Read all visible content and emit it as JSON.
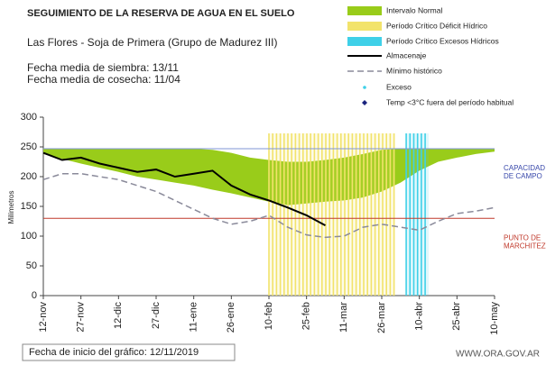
{
  "chart_data": {
    "type": "line",
    "title": "SEGUIMIENTO DE LA RESERVA DE AGUA EN EL SUELO",
    "subtitle": "Las Flores - Soja de Primera (Grupo de Madurez III)",
    "notes": [
      "Fecha media de siembra: 13/11",
      "Fecha media de cosecha: 11/04"
    ],
    "y_label": "Milímetros",
    "categories": [
      "12-nov",
      null,
      "27-nov",
      null,
      "12-dic",
      null,
      "27-dic",
      null,
      "11-ene",
      null,
      "26-ene",
      null,
      "10-feb",
      null,
      "25-feb",
      null,
      "11-mar",
      null,
      "26-mar",
      null,
      "10-abr",
      null,
      "25-abr",
      null,
      "10-may"
    ],
    "ylim": [
      0,
      300
    ],
    "yticks": [
      0,
      50,
      100,
      150,
      200,
      250,
      300
    ],
    "band": {
      "name": "Intervalo Normal",
      "color": "#99cc1a",
      "upper": [
        247,
        247,
        247,
        247,
        247,
        247,
        247,
        247,
        247,
        245,
        240,
        232,
        228,
        225,
        225,
        228,
        232,
        238,
        245,
        247,
        247,
        247,
        247,
        247,
        247
      ],
      "lower": [
        238,
        230,
        222,
        215,
        208,
        200,
        195,
        190,
        185,
        178,
        172,
        165,
        158,
        152,
        155,
        158,
        160,
        165,
        175,
        190,
        210,
        225,
        232,
        238,
        242
      ]
    },
    "periods": [
      {
        "name": "Período Crítico Déficit Hídrico",
        "color": "#f2e36b",
        "span": [
          12,
          18.7
        ]
      },
      {
        "name": "Período Crítico Excesos Hídricos",
        "color": "#3fd0e8",
        "span": [
          19.3,
          20.5
        ]
      }
    ],
    "series": [
      {
        "name": "Almacenaje",
        "color": "#000000",
        "dash": false,
        "values": [
          240,
          228,
          232,
          222,
          215,
          208,
          212,
          200,
          205,
          210,
          185,
          170,
          160,
          148,
          135,
          118,
          null,
          null,
          null,
          null,
          null,
          null,
          null,
          null,
          null
        ]
      },
      {
        "name": "Mínimo histórico",
        "color": "#8a8a9a",
        "dash": true,
        "values": [
          195,
          205,
          205,
          200,
          195,
          185,
          175,
          160,
          145,
          130,
          120,
          125,
          135,
          115,
          102,
          98,
          100,
          115,
          120,
          115,
          110,
          125,
          138,
          142,
          148
        ]
      }
    ],
    "markers": [
      {
        "name": "Exceso",
        "color": "#3fd0e8",
        "symbol": "dot"
      },
      {
        "name": "Temp <3°C fuera del período habitual",
        "color": "#1a237e",
        "symbol": "diamond"
      }
    ],
    "reference_lines": [
      {
        "value": 247,
        "color": "#7f95d6",
        "text_color": "#3949ab",
        "label": [
          "CAPACIDAD",
          "DE CAMPO"
        ]
      },
      {
        "value": 130,
        "color": "#c0392b",
        "text_color": "#c0392b",
        "label": [
          "PUNTO DE",
          "MARCHITEZ"
        ]
      }
    ],
    "footer_left": "Fecha de inicio del gráfico:  12/11/2019",
    "footer_right": "WWW.ORA.GOV.AR"
  }
}
